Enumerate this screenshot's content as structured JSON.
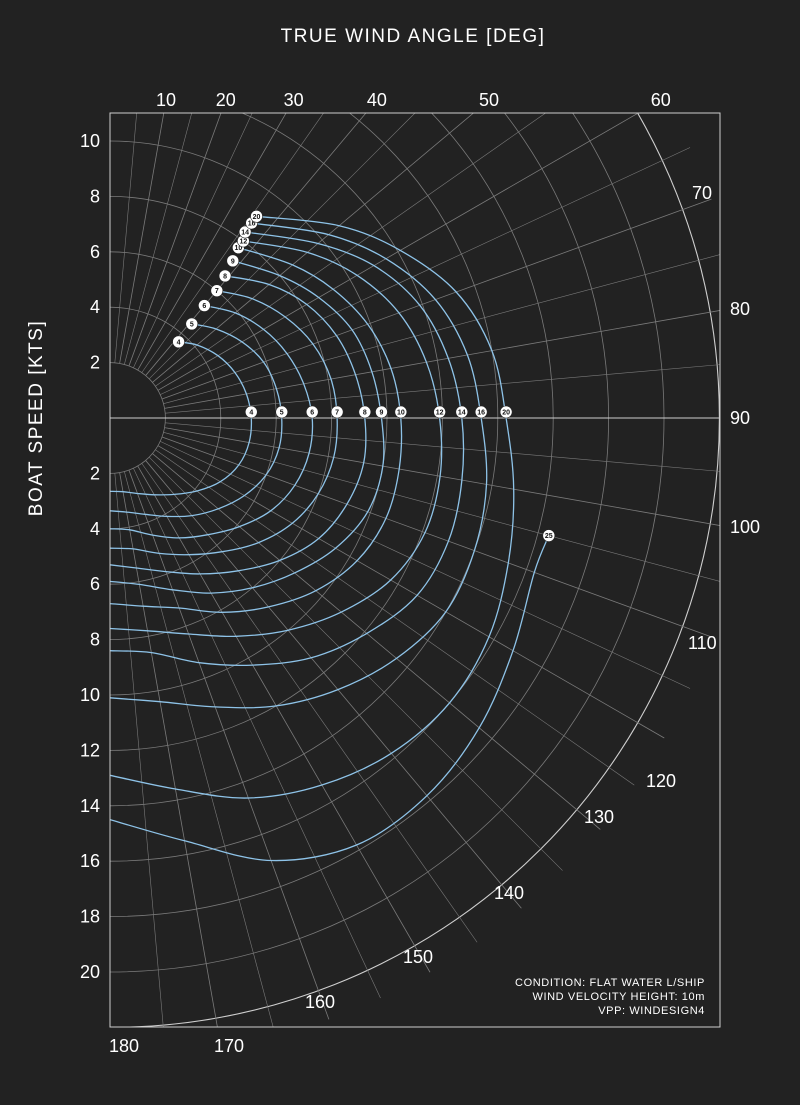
{
  "chart_data": {
    "type": "polar",
    "title": "",
    "top_axis_title": "TRUE WIND ANGLE [DEG]",
    "left_axis_title": "BOAT SPEED [KTS]",
    "angle_unit": "deg",
    "angle_range": [
      0,
      180
    ],
    "angle_ticks": [
      10,
      20,
      30,
      40,
      50,
      60,
      70,
      80,
      90,
      100,
      110,
      120,
      130,
      140,
      150,
      160,
      170,
      180
    ],
    "speed_range": [
      0,
      22
    ],
    "speed_ticks_upper": [
      2,
      4,
      6,
      8,
      10
    ],
    "speed_ticks_lower": [
      2,
      4,
      6,
      8,
      10,
      12,
      14,
      16,
      18,
      20
    ],
    "grid": true,
    "series_label_note": "Curves labelled by true wind speed [kts] at beat angle and at 90 deg",
    "series": [
      {
        "name": "4",
        "beat_angle": 42,
        "points": [
          [
            42,
            3.7
          ],
          [
            50,
            4.1
          ],
          [
            60,
            4.5
          ],
          [
            70,
            4.8
          ],
          [
            80,
            5.0
          ],
          [
            90,
            5.1
          ],
          [
            100,
            5.1
          ],
          [
            110,
            4.95
          ],
          [
            120,
            4.6
          ],
          [
            130,
            4.1
          ],
          [
            140,
            3.6
          ],
          [
            150,
            3.2
          ],
          [
            160,
            2.9
          ],
          [
            170,
            2.7
          ],
          [
            180,
            2.65
          ]
        ]
      },
      {
        "name": "5",
        "beat_angle": 41,
        "points": [
          [
            41,
            4.5
          ],
          [
            50,
            5.0
          ],
          [
            60,
            5.5
          ],
          [
            70,
            5.9
          ],
          [
            80,
            6.1
          ],
          [
            90,
            6.2
          ],
          [
            100,
            6.2
          ],
          [
            110,
            6.0
          ],
          [
            120,
            5.6
          ],
          [
            130,
            5.1
          ],
          [
            140,
            4.6
          ],
          [
            150,
            4.1
          ],
          [
            160,
            3.7
          ],
          [
            170,
            3.45
          ],
          [
            180,
            3.35
          ]
        ]
      },
      {
        "name": "6",
        "beat_angle": 40,
        "points": [
          [
            40,
            5.3
          ],
          [
            50,
            5.9
          ],
          [
            60,
            6.4
          ],
          [
            70,
            6.8
          ],
          [
            80,
            7.1
          ],
          [
            90,
            7.3
          ],
          [
            100,
            7.3
          ],
          [
            110,
            7.1
          ],
          [
            120,
            6.7
          ],
          [
            130,
            6.1
          ],
          [
            140,
            5.5
          ],
          [
            150,
            5.0
          ],
          [
            160,
            4.5
          ],
          [
            170,
            4.1
          ],
          [
            180,
            4.0
          ]
        ]
      },
      {
        "name": "7",
        "beat_angle": 40,
        "points": [
          [
            40,
            6.0
          ],
          [
            50,
            6.7
          ],
          [
            60,
            7.3
          ],
          [
            70,
            7.8
          ],
          [
            80,
            8.1
          ],
          [
            90,
            8.2
          ],
          [
            100,
            8.2
          ],
          [
            110,
            8.0
          ],
          [
            120,
            7.6
          ],
          [
            130,
            7.0
          ],
          [
            140,
            6.3
          ],
          [
            150,
            5.7
          ],
          [
            160,
            5.2
          ],
          [
            170,
            4.8
          ],
          [
            180,
            4.7
          ]
        ]
      },
      {
        "name": "8",
        "beat_angle": 39,
        "points": [
          [
            39,
            6.6
          ],
          [
            50,
            7.5
          ],
          [
            60,
            8.2
          ],
          [
            70,
            8.7
          ],
          [
            80,
            9.0
          ],
          [
            90,
            9.2
          ],
          [
            100,
            9.3
          ],
          [
            110,
            9.1
          ],
          [
            120,
            8.7
          ],
          [
            130,
            8.0
          ],
          [
            140,
            7.2
          ],
          [
            150,
            6.5
          ],
          [
            160,
            5.9
          ],
          [
            170,
            5.5
          ],
          [
            180,
            5.3
          ]
        ]
      },
      {
        "name": "9",
        "beat_angle": 38,
        "points": [
          [
            38,
            7.2
          ],
          [
            50,
            8.0
          ],
          [
            60,
            8.7
          ],
          [
            70,
            9.3
          ],
          [
            80,
            9.6
          ],
          [
            90,
            9.8
          ],
          [
            100,
            10.0
          ],
          [
            110,
            9.9
          ],
          [
            120,
            9.4
          ],
          [
            130,
            8.7
          ],
          [
            140,
            8.0
          ],
          [
            150,
            7.3
          ],
          [
            160,
            6.6
          ],
          [
            170,
            6.1
          ],
          [
            180,
            5.9
          ]
        ]
      },
      {
        "name": "10",
        "beat_angle": 37,
        "points": [
          [
            37,
            7.7
          ],
          [
            50,
            8.6
          ],
          [
            60,
            9.3
          ],
          [
            70,
            9.9
          ],
          [
            80,
            10.3
          ],
          [
            90,
            10.5
          ],
          [
            100,
            10.6
          ],
          [
            110,
            10.6
          ],
          [
            120,
            10.3
          ],
          [
            130,
            9.7
          ],
          [
            140,
            8.9
          ],
          [
            150,
            8.1
          ],
          [
            160,
            7.3
          ],
          [
            170,
            6.9
          ],
          [
            180,
            6.7
          ]
        ]
      },
      {
        "name": "12",
        "beat_angle": 37,
        "points": [
          [
            37,
            8.0
          ],
          [
            50,
            9.3
          ],
          [
            60,
            10.3
          ],
          [
            70,
            11.1
          ],
          [
            80,
            11.6
          ],
          [
            90,
            11.9
          ],
          [
            100,
            12.1
          ],
          [
            110,
            12.1
          ],
          [
            120,
            11.7
          ],
          [
            130,
            10.9
          ],
          [
            140,
            10.0
          ],
          [
            150,
            9.1
          ],
          [
            160,
            8.3
          ],
          [
            170,
            7.8
          ],
          [
            180,
            7.6
          ]
        ]
      },
      {
        "name": "14",
        "beat_angle": 36,
        "points": [
          [
            36,
            8.3
          ],
          [
            50,
            9.8
          ],
          [
            60,
            11.0
          ],
          [
            70,
            11.9
          ],
          [
            80,
            12.4
          ],
          [
            90,
            12.7
          ],
          [
            100,
            12.9
          ],
          [
            110,
            13.0
          ],
          [
            120,
            12.8
          ],
          [
            130,
            12.1
          ],
          [
            140,
            11.3
          ],
          [
            150,
            10.3
          ],
          [
            160,
            9.4
          ],
          [
            170,
            8.6
          ],
          [
            180,
            8.4
          ]
        ]
      },
      {
        "name": "16",
        "beat_angle": 36,
        "points": [
          [
            36,
            8.7
          ],
          [
            50,
            10.3
          ],
          [
            60,
            11.5
          ],
          [
            70,
            12.5
          ],
          [
            80,
            13.1
          ],
          [
            90,
            13.4
          ],
          [
            100,
            13.8
          ],
          [
            110,
            14.0
          ],
          [
            120,
            14.0
          ],
          [
            130,
            13.5
          ],
          [
            140,
            12.8
          ],
          [
            150,
            12.0
          ],
          [
            160,
            11.1
          ],
          [
            170,
            10.4
          ],
          [
            180,
            10.1
          ]
        ]
      },
      {
        "name": "20",
        "beat_angle": 36,
        "points": [
          [
            36,
            9.0
          ],
          [
            50,
            10.8
          ],
          [
            60,
            12.1
          ],
          [
            70,
            13.3
          ],
          [
            80,
            14.0
          ],
          [
            90,
            14.3
          ],
          [
            100,
            14.8
          ],
          [
            110,
            15.3
          ],
          [
            120,
            15.8
          ],
          [
            130,
            16.0
          ],
          [
            140,
            15.8
          ],
          [
            150,
            15.3
          ],
          [
            160,
            14.6
          ],
          [
            170,
            13.6
          ],
          [
            180,
            12.9
          ]
        ]
      },
      {
        "name": "25",
        "beat_angle": 105,
        "points": [
          [
            105,
            16.4
          ],
          [
            110,
            16.3
          ],
          [
            120,
            16.8
          ],
          [
            130,
            17.4
          ],
          [
            140,
            17.8
          ],
          [
            150,
            17.8
          ],
          [
            160,
            17.0
          ],
          [
            170,
            15.5
          ],
          [
            180,
            14.5
          ]
        ]
      }
    ]
  },
  "notes": {
    "condition": "CONDITION: FLAT WATER L/SHIP",
    "height": "WIND VELOCITY HEIGHT: 10m",
    "vpp": "VPP: WINDESIGN4"
  },
  "colors": {
    "background": "#222222",
    "grid": "#7a7a7a",
    "frame": "#cfcfcf",
    "curve": "#8ec3e8",
    "badge": "#ffffff",
    "text": "#ffffff"
  }
}
